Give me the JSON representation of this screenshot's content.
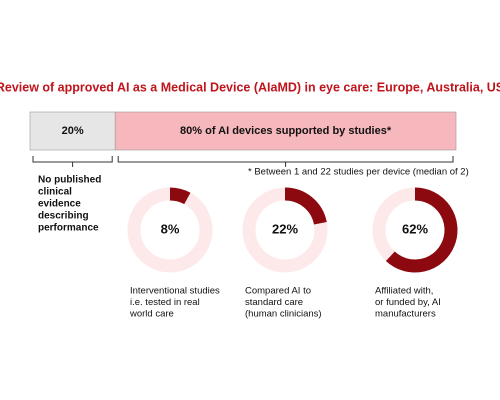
{
  "title": "Review of approved AI as a Medical Device (AIaMD) in eye care: Europe, Australia, US",
  "chart_data": [
    {
      "type": "bar",
      "xlim": [
        0,
        100
      ],
      "series": [
        {
          "values": [
            20
          ],
          "value_labels": [
            "20%"
          ],
          "color": "#e6e6e6",
          "note": [
            "No published",
            "clinical",
            "evidence",
            "describing",
            "performance"
          ]
        },
        {
          "values": [
            80
          ],
          "value_labels": [
            "80% of AI devices supported by studies*"
          ],
          "color": "#f7b8bd",
          "note": [
            "* Between 1 and 22 studies per device (median of 2)"
          ]
        }
      ]
    },
    {
      "type": "donut",
      "values": [
        8
      ],
      "value_labels": [
        "8%"
      ],
      "color": "#8c0a0f",
      "track_color": "#fde9e9",
      "caption": [
        "Interventional studies",
        "i.e. tested in real",
        "world care"
      ]
    },
    {
      "type": "donut",
      "values": [
        22
      ],
      "value_labels": [
        "22%"
      ],
      "color": "#8c0a0f",
      "track_color": "#fde9e9",
      "caption": [
        "Compared AI to",
        "standard care",
        "(human clinicians)"
      ]
    },
    {
      "type": "donut",
      "values": [
        62
      ],
      "value_labels": [
        "62%"
      ],
      "color": "#8c0a0f",
      "track_color": "#fde9e9",
      "caption": [
        "Affiliated with,",
        "or funded by, AI",
        "manufacturers"
      ]
    }
  ]
}
